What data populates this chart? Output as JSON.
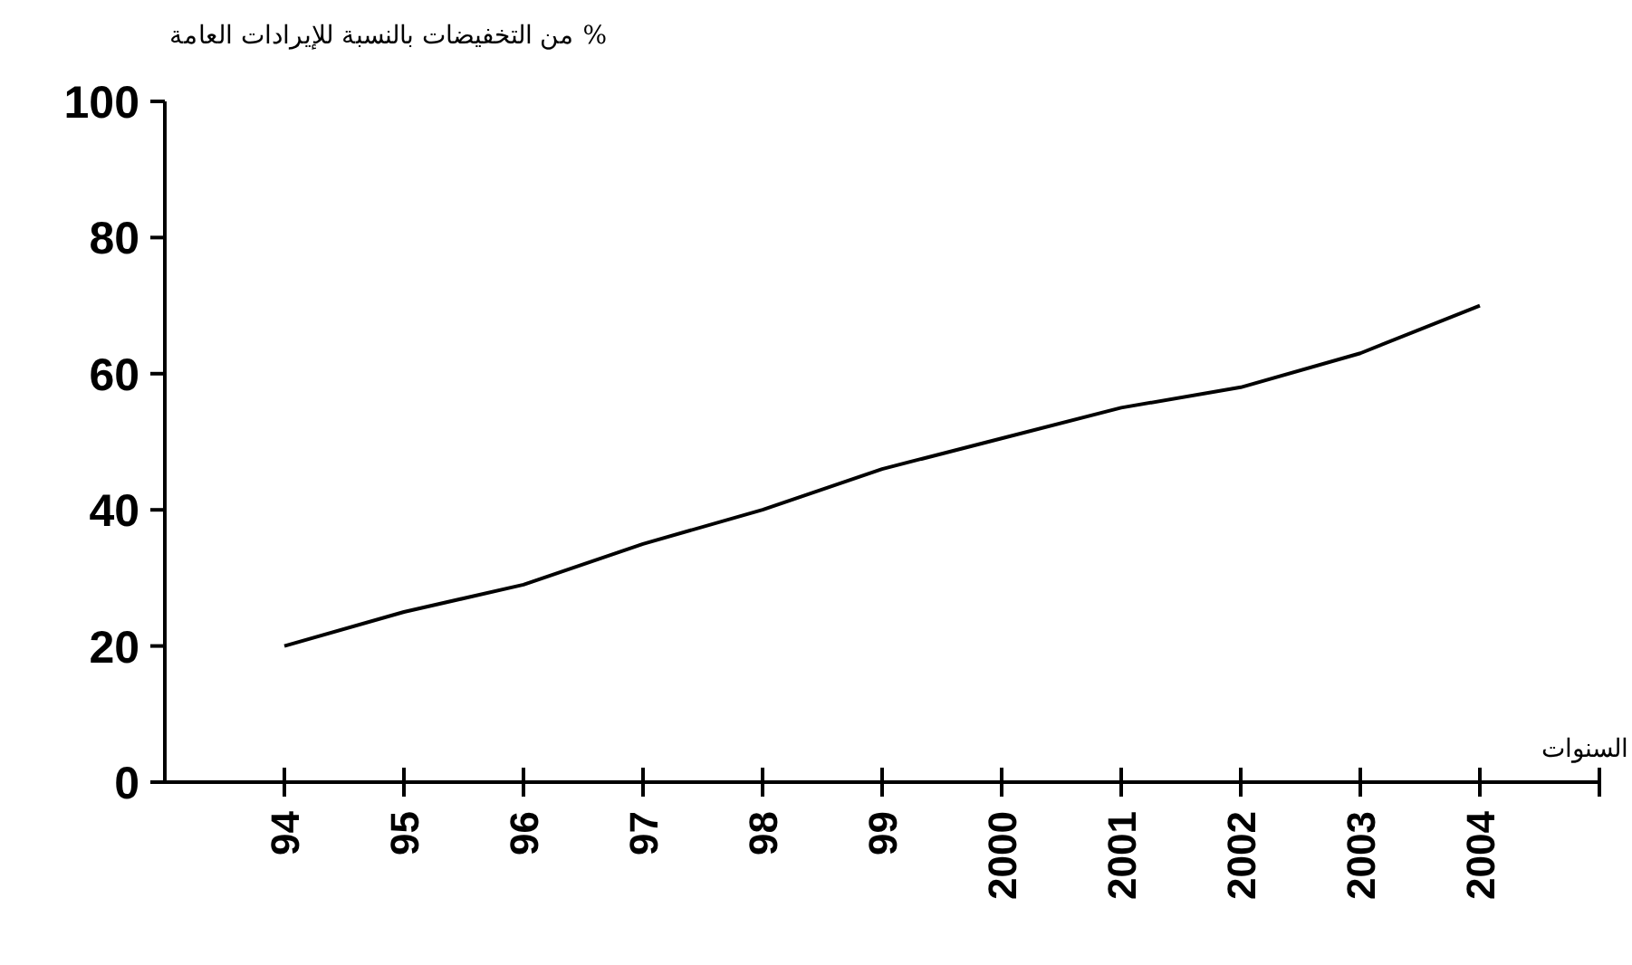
{
  "chart_data": {
    "type": "line",
    "ylabel": "% من التخفيضات بالنسبة للإيرادات العامة",
    "xlabel": "السنوات",
    "categories": [
      "94",
      "95",
      "96",
      "97",
      "98",
      "99",
      "2000",
      "2001",
      "2002",
      "2003",
      "2004"
    ],
    "series": [
      {
        "color": "#000000",
        "values": [
          20,
          25,
          29,
          35,
          40,
          46,
          50.5,
          55,
          58,
          63,
          70
        ]
      }
    ],
    "ylim": [
      0,
      100
    ],
    "yticks": [
      0,
      20,
      40,
      60,
      80,
      100
    ],
    "grid": false,
    "marker": "none",
    "line_style": "solid"
  }
}
